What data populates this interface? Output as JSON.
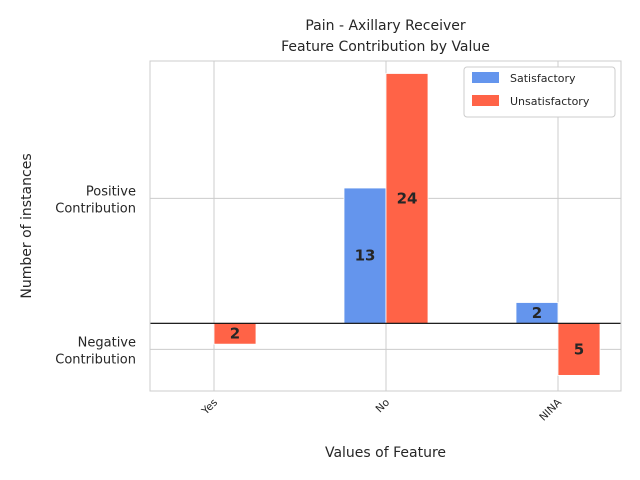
{
  "chart_data": {
    "type": "bar",
    "title_line1": "Pain - Axillary Receiver",
    "title_line2": "Feature Contribution by Value",
    "xlabel": "Values of Feature",
    "ylabel": "Number of instances",
    "categories": [
      "Yes",
      "No",
      "NINA"
    ],
    "series": [
      {
        "name": "Satisfactory",
        "color": "#6495ED",
        "values": [
          0,
          13,
          2
        ]
      },
      {
        "name": "Unsatisfactory",
        "color": "#FF6347",
        "values": [
          -2,
          24,
          -5
        ]
      }
    ],
    "bar_labels": [
      {
        "category": "Yes",
        "series": "Unsatisfactory",
        "text": "2"
      },
      {
        "category": "No",
        "series": "Satisfactory",
        "text": "13"
      },
      {
        "category": "No",
        "series": "Unsatisfactory",
        "text": "24"
      },
      {
        "category": "NINA",
        "series": "Satisfactory",
        "text": "2"
      },
      {
        "category": "NINA",
        "series": "Unsatisfactory",
        "text": "5"
      }
    ],
    "yticks": [
      {
        "value": 12,
        "line1": "Positive",
        "line2": "Contribution"
      },
      {
        "value": -2.5,
        "line1": "Negative",
        "line2": "Contribution"
      }
    ],
    "ylim": [
      -6.5,
      25.2
    ],
    "grid": true,
    "legend_position": "top-right"
  }
}
